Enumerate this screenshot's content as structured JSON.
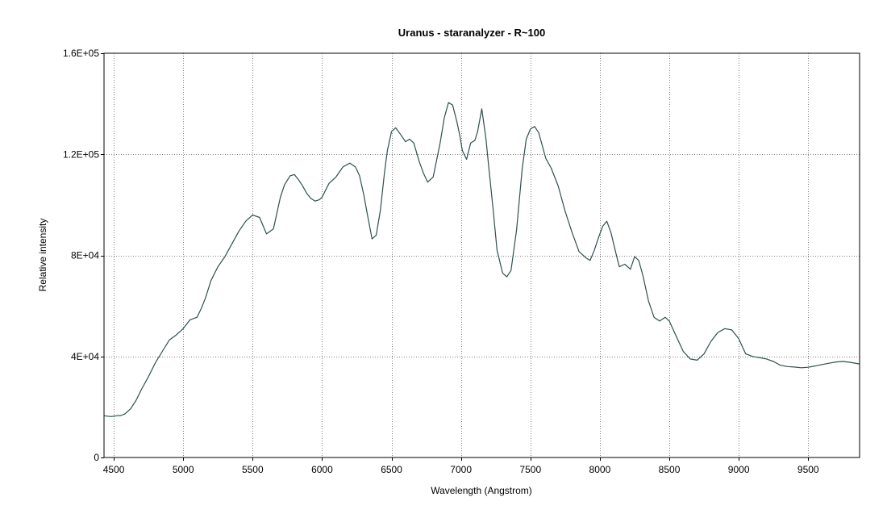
{
  "chart_data": {
    "type": "line",
    "title": "Uranus - staranalyzer - R~100",
    "xlabel": "Wavelength (Angstrom)",
    "ylabel": "Relative intensity",
    "xlim": [
      4430,
      9870
    ],
    "ylim": [
      0,
      160000
    ],
    "x_ticks": [
      4500,
      5000,
      5500,
      6000,
      6500,
      7000,
      7500,
      8000,
      8500,
      9000,
      9500
    ],
    "x_tick_labels": [
      "4500",
      "5000",
      "5500",
      "6000",
      "6500",
      "7000",
      "7500",
      "8000",
      "8500",
      "9000",
      "9500"
    ],
    "y_ticks": [
      0,
      40000,
      80000,
      120000,
      160000
    ],
    "y_tick_labels": [
      "0",
      "4E+04",
      "8E+04",
      "1.2E+05",
      "1.6E+05"
    ],
    "grid": true,
    "line_color": "#2f4f4f",
    "series": [
      {
        "x": [
          4430,
          4480,
          4520,
          4550,
          4580,
          4620,
          4660,
          4700,
          4750,
          4800,
          4850,
          4900,
          4950,
          5000,
          5050,
          5100,
          5130,
          5160,
          5200,
          5250,
          5300,
          5350,
          5400,
          5450,
          5500,
          5550,
          5600,
          5650,
          5700,
          5730,
          5770,
          5800,
          5830,
          5860,
          5890,
          5920,
          5950,
          5980,
          6000,
          6050,
          6100,
          6150,
          6200,
          6240,
          6270,
          6300,
          6330,
          6360,
          6390,
          6420,
          6450,
          6470,
          6500,
          6530,
          6570,
          6600,
          6630,
          6660,
          6700,
          6730,
          6760,
          6800,
          6850,
          6880,
          6910,
          6940,
          6970,
          6990,
          7010,
          7040,
          7070,
          7100,
          7120,
          7150,
          7180,
          7200,
          7230,
          7260,
          7300,
          7330,
          7360,
          7400,
          7440,
          7470,
          7500,
          7530,
          7560,
          7580,
          7610,
          7650,
          7700,
          7750,
          7800,
          7850,
          7900,
          7930,
          7960,
          7990,
          8020,
          8050,
          8080,
          8110,
          8140,
          8180,
          8220,
          8250,
          8280,
          8310,
          8350,
          8390,
          8430,
          8470,
          8500,
          8550,
          8600,
          8650,
          8700,
          8750,
          8800,
          8850,
          8900,
          8950,
          9000,
          9050,
          9100,
          9150,
          9200,
          9250,
          9300,
          9350,
          9400,
          9450,
          9500,
          9550,
          9600,
          9650,
          9700,
          9750,
          9800,
          9870
        ],
        "y": [
          16500,
          16200,
          16500,
          16600,
          17200,
          19200,
          22500,
          27000,
          32000,
          37500,
          42000,
          46500,
          48500,
          51000,
          54500,
          55500,
          59000,
          63000,
          70000,
          75500,
          79500,
          84500,
          89500,
          93500,
          96000,
          95000,
          88500,
          90500,
          103000,
          108000,
          111500,
          112000,
          110000,
          107500,
          104500,
          102500,
          101500,
          102000,
          103000,
          108500,
          111000,
          115000,
          116500,
          115000,
          111500,
          104000,
          95000,
          86500,
          88000,
          98000,
          113000,
          121500,
          129000,
          130500,
          127500,
          125000,
          126000,
          124500,
          117000,
          112500,
          109000,
          111000,
          124500,
          134500,
          140500,
          139500,
          133000,
          128000,
          121500,
          118000,
          124500,
          125500,
          129000,
          138000,
          126000,
          115000,
          99000,
          82000,
          73000,
          71500,
          74000,
          90000,
          114000,
          126000,
          130000,
          131000,
          128500,
          124500,
          118500,
          114500,
          107500,
          97500,
          89000,
          81500,
          79000,
          78000,
          82000,
          87000,
          91500,
          93500,
          89000,
          82000,
          75500,
          76500,
          74500,
          79500,
          78000,
          72000,
          62000,
          55500,
          54000,
          55500,
          54000,
          48000,
          42000,
          39000,
          38500,
          41000,
          46000,
          49500,
          51000,
          50500,
          47000,
          41000,
          40000,
          39500,
          39000,
          38000,
          36500,
          36000,
          35800,
          35500,
          35700,
          36200,
          36800,
          37300,
          37800,
          38000,
          37700,
          37000
        ]
      }
    ]
  }
}
